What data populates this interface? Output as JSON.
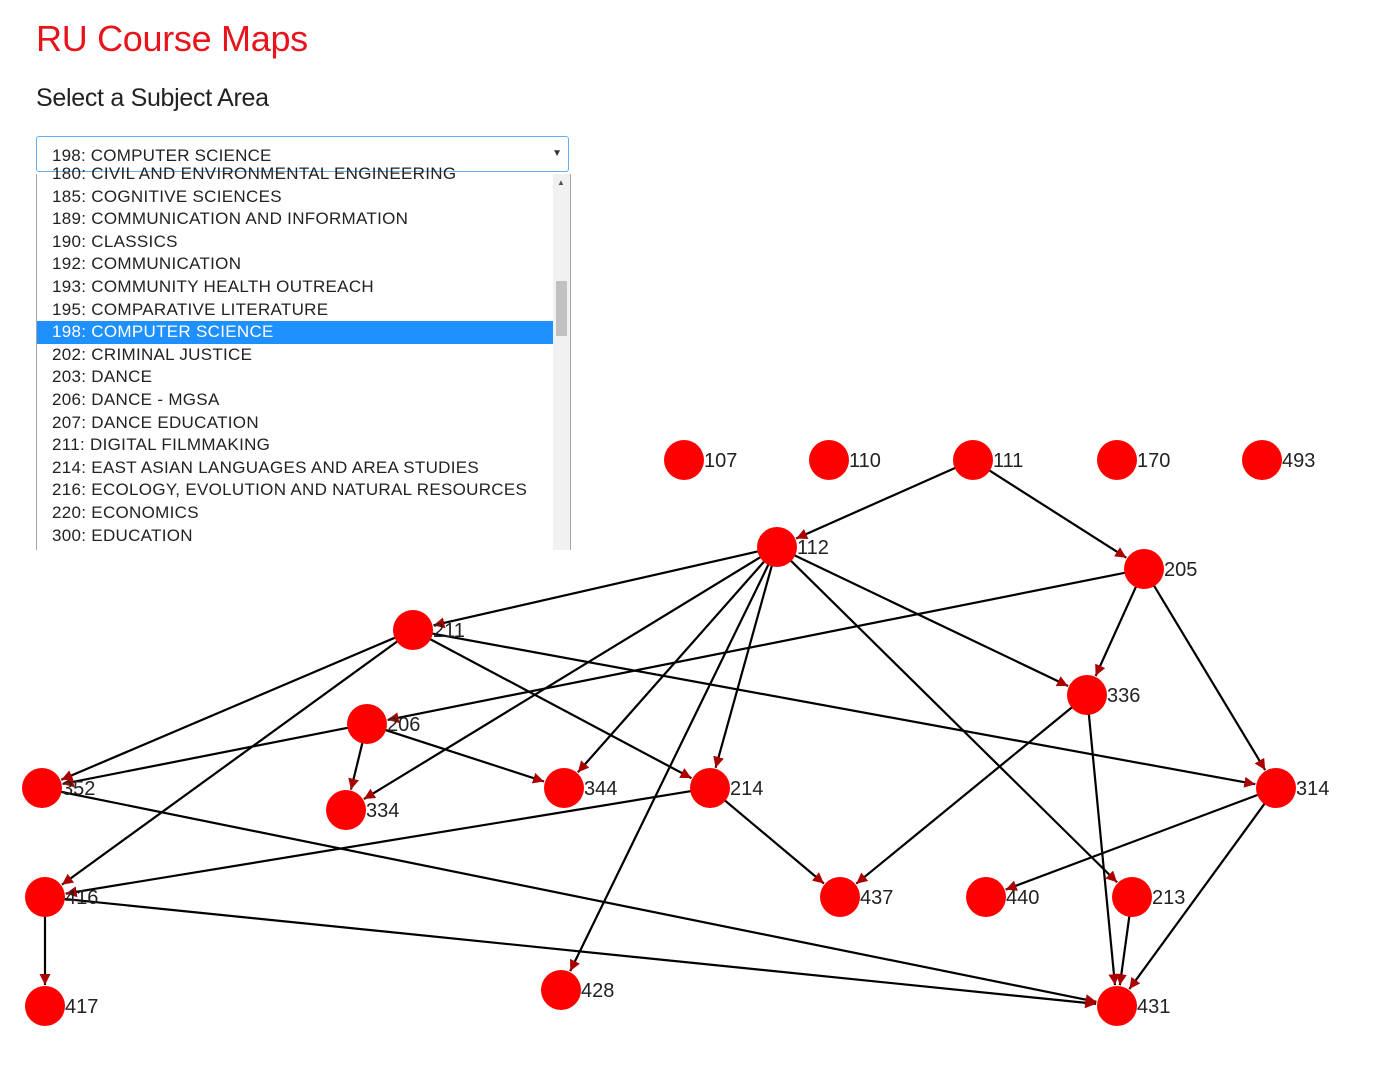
{
  "title": "RU Course Maps",
  "heading": "Select a Subject Area",
  "select": {
    "value": "198: COMPUTER SCIENCE",
    "options": [
      {
        "label": "180: CIVIL AND ENVIRONMENTAL ENGINEERING",
        "selected": false
      },
      {
        "label": "185: COGNITIVE SCIENCES",
        "selected": false
      },
      {
        "label": "189: COMMUNICATION AND INFORMATION",
        "selected": false
      },
      {
        "label": "190: CLASSICS",
        "selected": false
      },
      {
        "label": "192: COMMUNICATION",
        "selected": false
      },
      {
        "label": "193: COMMUNITY HEALTH OUTREACH",
        "selected": false
      },
      {
        "label": "195: COMPARATIVE LITERATURE",
        "selected": false
      },
      {
        "label": "198: COMPUTER SCIENCE",
        "selected": true
      },
      {
        "label": "202: CRIMINAL JUSTICE",
        "selected": false
      },
      {
        "label": "203: DANCE",
        "selected": false
      },
      {
        "label": "206: DANCE - MGSA",
        "selected": false
      },
      {
        "label": "207: DANCE EDUCATION",
        "selected": false
      },
      {
        "label": "211: DIGITAL FILMMAKING",
        "selected": false
      },
      {
        "label": "214: EAST ASIAN LANGUAGES AND AREA STUDIES",
        "selected": false
      },
      {
        "label": "216: ECOLOGY, EVOLUTION AND NATURAL RESOURCES",
        "selected": false
      },
      {
        "label": "220: ECONOMICS",
        "selected": false
      },
      {
        "label": "300: EDUCATION",
        "selected": false
      }
    ]
  },
  "graph": {
    "node_color": "#ff0000",
    "edge_color": "#000000",
    "arrow_color": "#aa0000",
    "nodes": [
      "107",
      "110",
      "111",
      "170",
      "493",
      "112",
      "205",
      "211",
      "336",
      "206",
      "352",
      "334",
      "344",
      "214",
      "314",
      "416",
      "437",
      "440",
      "213",
      "417",
      "428",
      "431"
    ],
    "edges": [
      [
        "111",
        "112"
      ],
      [
        "111",
        "205"
      ],
      [
        "112",
        "211"
      ],
      [
        "112",
        "334"
      ],
      [
        "112",
        "344"
      ],
      [
        "112",
        "214"
      ],
      [
        "112",
        "428"
      ],
      [
        "112",
        "336"
      ],
      [
        "112",
        "213"
      ],
      [
        "205",
        "206"
      ],
      [
        "205",
        "336"
      ],
      [
        "205",
        "314"
      ],
      [
        "211",
        "352"
      ],
      [
        "211",
        "416"
      ],
      [
        "211",
        "214"
      ],
      [
        "211",
        "314"
      ],
      [
        "206",
        "352"
      ],
      [
        "206",
        "334"
      ],
      [
        "206",
        "344"
      ],
      [
        "214",
        "416"
      ],
      [
        "214",
        "437"
      ],
      [
        "336",
        "437"
      ],
      [
        "336",
        "431"
      ],
      [
        "314",
        "440"
      ],
      [
        "314",
        "431"
      ],
      [
        "213",
        "431"
      ],
      [
        "352",
        "431"
      ],
      [
        "416",
        "417"
      ],
      [
        "416",
        "431"
      ]
    ]
  }
}
